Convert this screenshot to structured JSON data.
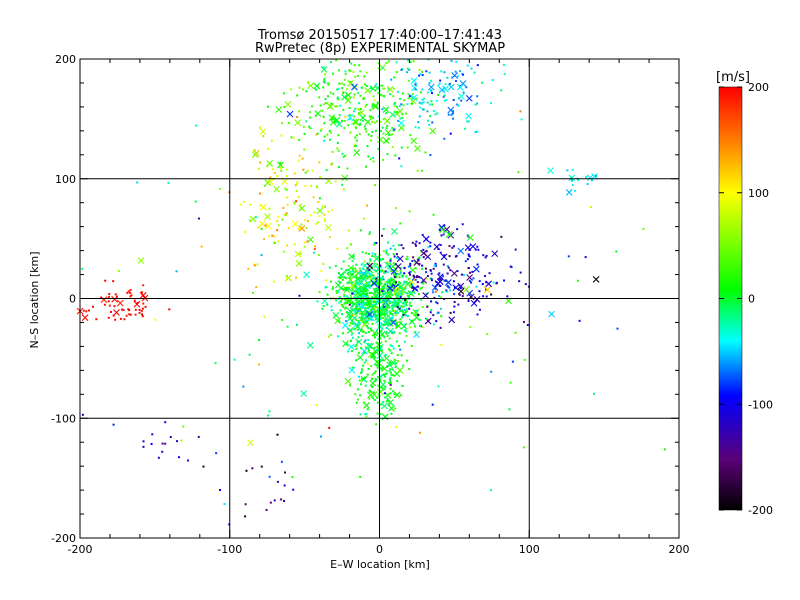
{
  "chart_data": {
    "type": "scatter",
    "title_line1": "Tromsø 20150517 17:40:00–17:41:43",
    "title_line2": "RwPretec (8p) EXPERIMENTAL SKYMAP",
    "xlabel": "E–W location [km]",
    "ylabel": "N–S location [km]",
    "xlim": [
      -200,
      200
    ],
    "ylim": [
      -200,
      200
    ],
    "xticks": [
      "-200",
      "-100",
      "0",
      "100",
      "200"
    ],
    "yticks": [
      "-200",
      "-100",
      "0",
      "100",
      "200"
    ],
    "grid": true,
    "colorbar": {
      "label": "[m/s]",
      "range": [
        -200,
        200
      ],
      "ticks": [
        "200",
        "100",
        "0",
        "-100",
        "-200"
      ],
      "colormap": "rainbow (black-purple-blue-cyan-green-yellow-red)"
    },
    "marker_types": [
      "dot",
      "cross"
    ],
    "series": [
      {
        "cluster": "western red group",
        "cx": -170,
        "cy": -5,
        "sx": 12,
        "sy": 8,
        "vel": 195,
        "vsd": 5,
        "n": 60
      },
      {
        "cluster": "central cyan-green core",
        "cx": -3,
        "cy": 0,
        "sx": 14,
        "sy": 18,
        "vel": 0,
        "vsd": 25,
        "n": 900
      },
      {
        "cluster": "southern green arm",
        "cx": 0,
        "cy": -65,
        "sx": 8,
        "sy": 18,
        "vel": 5,
        "vsd": 20,
        "n": 180
      },
      {
        "cluster": "northern green arm",
        "cx": -15,
        "cy": 160,
        "sx": 22,
        "sy": 28,
        "vel": 25,
        "vsd": 25,
        "n": 320
      },
      {
        "cluster": "north-west yellow-orange",
        "cx": -60,
        "cy": 80,
        "sx": 18,
        "sy": 30,
        "vel": 90,
        "vsd": 30,
        "n": 160
      },
      {
        "cluster": "north-east cyan",
        "cx": 40,
        "cy": 170,
        "sx": 22,
        "sy": 20,
        "vel": -50,
        "vsd": 20,
        "n": 140
      },
      {
        "cluster": "east blue band",
        "cx": 40,
        "cy": 20,
        "sx": 25,
        "sy": 18,
        "vel": -110,
        "vsd": 30,
        "n": 240
      },
      {
        "cluster": "far north-east cyan streak",
        "cx": 130,
        "cy": 100,
        "sx": 8,
        "sy": 8,
        "vel": -40,
        "vsd": 10,
        "n": 20
      },
      {
        "cluster": "south-west blue",
        "cx": -140,
        "cy": -120,
        "sx": 12,
        "sy": 12,
        "vel": -120,
        "vsd": 20,
        "n": 14
      },
      {
        "cluster": "south-west dark",
        "cx": -80,
        "cy": -160,
        "sx": 15,
        "sy": 20,
        "vel": -140,
        "vsd": 40,
        "n": 20
      },
      {
        "cluster": "scattered background",
        "cx": 0,
        "cy": 0,
        "sx": 90,
        "sy": 90,
        "vel": 0,
        "vsd": 80,
        "n": 140
      }
    ]
  }
}
